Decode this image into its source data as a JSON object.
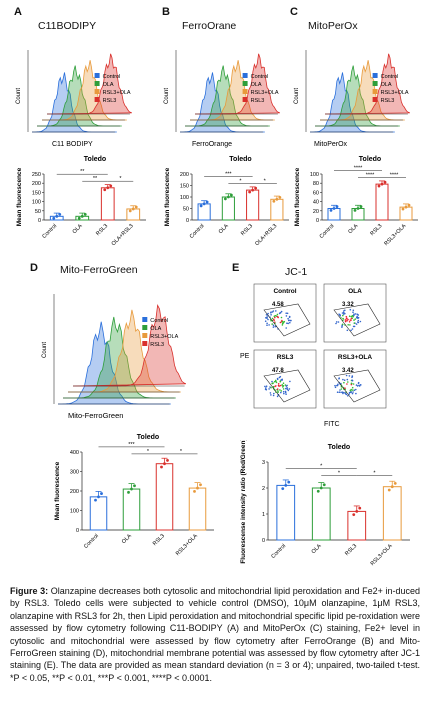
{
  "panels": {
    "A": {
      "letter": "A",
      "title": "C11BODIPY",
      "hist_xlabel": "C11 BODIPY",
      "hist_ylabel": "Count",
      "legend": [
        "Control",
        "OLA",
        "RSL3+OLA",
        "RSL3"
      ]
    },
    "B": {
      "letter": "B",
      "title": "FerroOrane",
      "hist_xlabel": "FerroOrange",
      "hist_ylabel": "Count",
      "legend": [
        "Control",
        "OLA",
        "RSL3+OLA",
        "RSL3"
      ]
    },
    "C": {
      "letter": "C",
      "title": "MitoPerOx",
      "hist_xlabel": "MitoPerOx",
      "hist_ylabel": "Count",
      "legend": [
        "Control",
        "OLA",
        "RSL3+OLA",
        "RSL3"
      ]
    },
    "D": {
      "letter": "D",
      "title": "Mito-FerroGreen",
      "hist_xlabel": "Mito-FerroGreen",
      "hist_ylabel": "Count",
      "legend": [
        "Control",
        "OLA",
        "RSL3+OLA",
        "RSL3"
      ]
    },
    "E": {
      "letter": "E",
      "title": "JC-1",
      "xlabel": "FITC",
      "ylabel": "PE",
      "quadrants": [
        {
          "label": "Control",
          "value": "4.58"
        },
        {
          "label": "OLA",
          "value": "3.32"
        },
        {
          "label": "RSL3",
          "value": "47.8"
        },
        {
          "label": "RSL3+OLA",
          "value": "3.42"
        }
      ]
    }
  },
  "colors": {
    "control": "#2a6fdb",
    "ola": "#2e9e3a",
    "rsl3_ola": "#e89a3c",
    "rsl3": "#d9302c"
  },
  "chart_data": [
    {
      "type": "bar",
      "title": "Toledo",
      "ylabel": "Mean fluorescence",
      "categories": [
        "Control",
        "OLA",
        "RSL3",
        "OLA+RSL3"
      ],
      "values": [
        20,
        20,
        175,
        60
      ],
      "ylim": [
        0,
        250
      ],
      "yticks": [
        "0",
        "50",
        "100",
        "150",
        "200",
        "250"
      ],
      "sig": [
        "**",
        "**",
        "*"
      ]
    },
    {
      "type": "bar",
      "title": "Toledo",
      "ylabel": "Mean fluorescence",
      "categories": [
        "Control",
        "OLA",
        "RSL3",
        "OLA+RSL3"
      ],
      "values": [
        70,
        100,
        130,
        90
      ],
      "ylim": [
        0,
        200
      ],
      "yticks": [
        "0",
        "50",
        "100",
        "150",
        "200"
      ],
      "sig": [
        "***",
        "*",
        "*"
      ]
    },
    {
      "type": "bar",
      "title": "Toledo",
      "ylabel": "Mean fluorescence",
      "categories": [
        "Control",
        "OLA",
        "RSL3",
        "RSL3+OLA"
      ],
      "values": [
        25,
        25,
        78,
        28
      ],
      "ylim": [
        0,
        100
      ],
      "yticks": [
        "0",
        "20",
        "40",
        "60",
        "80",
        "100"
      ],
      "sig": [
        "****",
        "****",
        "****"
      ]
    },
    {
      "type": "bar",
      "title": "Toledo",
      "ylabel": "Mean fluorescence",
      "categories": [
        "Control",
        "OLA",
        "RSL3",
        "RSL3+OLA"
      ],
      "values": [
        170,
        210,
        340,
        215
      ],
      "ylim": [
        0,
        400
      ],
      "yticks": [
        "0",
        "100",
        "200",
        "300",
        "400"
      ],
      "sig": [
        "***",
        "*",
        "*"
      ]
    },
    {
      "type": "bar",
      "title": "Toledo",
      "ylabel": "Fluorescense intensity ratio (Red/Green)",
      "categories": [
        "Control",
        "OLA",
        "RSL3",
        "RSL3+OLA"
      ],
      "values": [
        2.1,
        2.0,
        1.1,
        2.05
      ],
      "ylim": [
        0,
        3
      ],
      "yticks": [
        "0",
        "1",
        "2",
        "3"
      ],
      "sig": [
        "*",
        "*",
        "*"
      ]
    }
  ],
  "caption": {
    "bold": "Figure 3:",
    "text": " Olanzapine decreases both cytosolic and mitochondrial lipid peroxidation and Fe2+ in-duced by RSL3. Toledo cells were subjected to vehicle control (DMSO), 10μM olanzapine, 1μM RSL3, olanzapine with RSL3 for 2h, then Lipid peroxidation and mitochondrial specific lipid pe-roxidation were assessed by flow cytometry following C11-BODIPY (A) and MitoPerOx (C) staining, Fe2+ level in cytosolic and mitochondrial were assessed by flow cytometry after FerroOrange (B) and Mito-FerroGreen staining (D), mitochondrial membrane potential was assessed by flow cytometry after JC-1 staining (E). The data are provided as mean standard deviation (n = 3 or 4); unpaired, two-tailed t-test. *P < 0.05, **P < 0.01, ***P < 0.001, ****P < 0.0001."
  }
}
